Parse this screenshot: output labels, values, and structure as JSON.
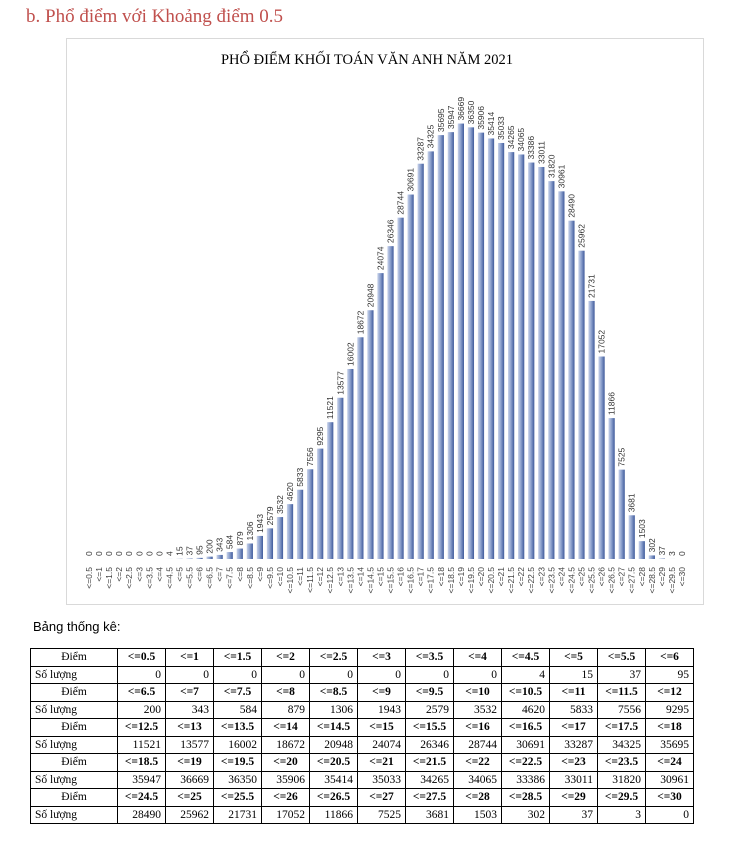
{
  "heading": "b.  Phổ điểm với Khoảng điểm 0.5",
  "stats_label": "Bảng thống kê:",
  "table_labels": {
    "score": "Điểm",
    "count": "Số lượng"
  },
  "colors": {
    "bar_light": "#c9d3ea",
    "bar_dark": "#3f5a9b",
    "heading": "#c0504d"
  },
  "chart_data": {
    "type": "bar",
    "title": "PHỔ ĐIỂM KHỐI TOÁN VĂN ANH  NĂM 2021",
    "xlabel": "",
    "ylabel": "",
    "ylim": [
      0,
      40000
    ],
    "yticks": [
      0,
      5000,
      10000,
      15000,
      20000,
      25000,
      30000,
      35000,
      40000
    ],
    "grid": false,
    "legend": "none",
    "categories": [
      "<=0.5",
      "<=1",
      "<=1.5",
      "<=2",
      "<=2.5",
      "<=3",
      "<=3.5",
      "<=4",
      "<=4.5",
      "<=5",
      "<=5.5",
      "<=6",
      "<=6.5",
      "<=7",
      "<=7.5",
      "<=8",
      "<=8.5",
      "<=9",
      "<=9.5",
      "<=10",
      "<=10.5",
      "<=11",
      "<=11.5",
      "<=12",
      "<=12.5",
      "<=13",
      "<=13.5",
      "<=14",
      "<=14.5",
      "<=15",
      "<=15.5",
      "<=16",
      "<=16.5",
      "<=17",
      "<=17.5",
      "<=18",
      "<=18.5",
      "<=19",
      "<=19.5",
      "<=20",
      "<=20.5",
      "<=21",
      "<=21.5",
      "<=22",
      "<=22.5",
      "<=23",
      "<=23.5",
      "<=24",
      "<=24.5",
      "<=25",
      "<=25.5",
      "<=26",
      "<=26.5",
      "<=27",
      "<=27.5",
      "<=28",
      "<=28.5",
      "<=29",
      "<=29.5",
      "<=30"
    ],
    "values": [
      0,
      0,
      0,
      0,
      0,
      0,
      0,
      0,
      4,
      15,
      37,
      95,
      200,
      343,
      584,
      879,
      1306,
      1943,
      2579,
      3532,
      4620,
      5833,
      7556,
      9295,
      11521,
      13577,
      16002,
      18672,
      20948,
      24074,
      26346,
      28744,
      30691,
      33287,
      34325,
      35695,
      35947,
      36669,
      36350,
      35906,
      35414,
      35033,
      34265,
      34065,
      33386,
      33011,
      31820,
      30961,
      28490,
      25962,
      21731,
      17052,
      11866,
      7525,
      3681,
      1503,
      302,
      37,
      3,
      0
    ]
  }
}
